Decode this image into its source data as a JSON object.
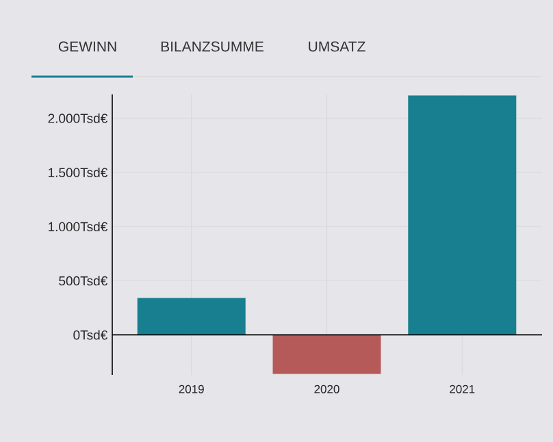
{
  "chart_data": {
    "type": "bar",
    "annotations": [
      "GEWINN",
      "BILANZSUMME",
      "UMSATZ"
    ],
    "categories": [
      "2019",
      "2020",
      "2021"
    ],
    "values": [
      340,
      -360,
      2210
    ],
    "colors": [
      "#177f8f",
      "#b55a59",
      "#177f8f"
    ],
    "ylim": [
      -370,
      2220
    ],
    "yticks": [
      {
        "value": 0,
        "label": "0Tsd€"
      },
      {
        "value": 500,
        "label": "500Tsd€"
      },
      {
        "value": 1000,
        "label": "1.000Tsd€"
      },
      {
        "value": 1500,
        "label": "1.500Tsd€"
      },
      {
        "value": 2000,
        "label": "2.000Tsd€"
      }
    ],
    "grid": true
  }
}
